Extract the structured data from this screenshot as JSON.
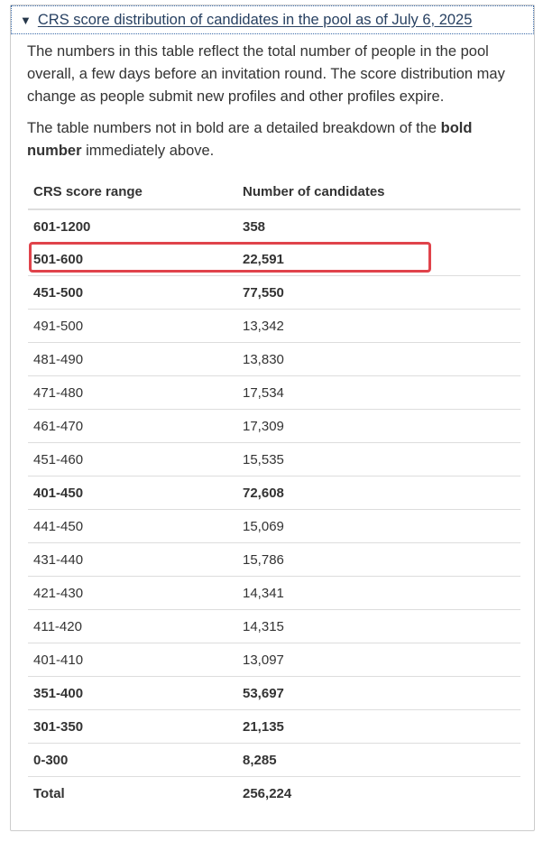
{
  "summary": {
    "caret_icon": "triangle-down-icon",
    "text": "CRS score distribution of candidates in the pool as of July 6, 2025"
  },
  "intro": {
    "paragraph1": "The numbers in this table reflect the total number of people in the pool overall, a few days before an invitation round. The score distribution may change as people submit new profiles and other profiles expire.",
    "paragraph2_before": "The table numbers not in bold are a detailed breakdown of the ",
    "paragraph2_bold": "bold number",
    "paragraph2_after": " immediately above."
  },
  "table": {
    "headers": [
      "CRS score range",
      "Number of candidates"
    ],
    "rows": [
      {
        "range": "601-1200",
        "count": "358",
        "bold": true
      },
      {
        "range": "501-600",
        "count": "22,591",
        "bold": true,
        "highlighted": true
      },
      {
        "range": "451-500",
        "count": "77,550",
        "bold": true
      },
      {
        "range": "491-500",
        "count": "13,342",
        "bold": false
      },
      {
        "range": "481-490",
        "count": "13,830",
        "bold": false
      },
      {
        "range": "471-480",
        "count": "17,534",
        "bold": false
      },
      {
        "range": "461-470",
        "count": "17,309",
        "bold": false
      },
      {
        "range": "451-460",
        "count": "15,535",
        "bold": false
      },
      {
        "range": "401-450",
        "count": "72,608",
        "bold": true
      },
      {
        "range": "441-450",
        "count": "15,069",
        "bold": false
      },
      {
        "range": "431-440",
        "count": "15,786",
        "bold": false
      },
      {
        "range": "421-430",
        "count": "14,341",
        "bold": false
      },
      {
        "range": "411-420",
        "count": "14,315",
        "bold": false
      },
      {
        "range": "401-410",
        "count": "13,097",
        "bold": false
      },
      {
        "range": "351-400",
        "count": "53,697",
        "bold": true
      },
      {
        "range": "301-350",
        "count": "21,135",
        "bold": true
      },
      {
        "range": "0-300",
        "count": "8,285",
        "bold": true
      },
      {
        "range": "Total",
        "count": "256,224",
        "bold": true
      }
    ]
  },
  "colors": {
    "link": "#284162",
    "highlight_border": "#e0434b",
    "row_divider": "#dddddd"
  }
}
